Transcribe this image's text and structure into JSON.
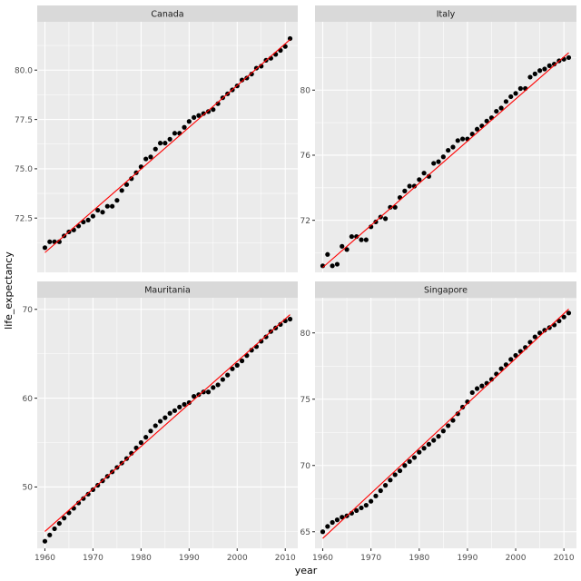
{
  "chart_data": {
    "type": "scatter",
    "layout": "facet-wrap 2x2, free y scales",
    "x_label": "year",
    "y_label": "life_expectancy",
    "x_ticks": [
      1960,
      1970,
      1980,
      1990,
      2000,
      2010
    ],
    "x_range": [
      1958.4,
      2012.6
    ],
    "smooth": {
      "method": "linear",
      "color": "#ff0000"
    },
    "point_color": "#000000",
    "panel_background": "#ebebeb",
    "strip_background": "#d9d9d9",
    "grid": true,
    "panels": [
      {
        "title": "Canada",
        "y_range": [
          69.75,
          82.45
        ],
        "y_ticks": [
          72.5,
          75.0,
          77.5,
          80.0
        ],
        "y_tick_labels": [
          "72.5",
          "75.0",
          "77.5",
          "80.0"
        ],
        "x": [
          1960,
          1961,
          1962,
          1963,
          1964,
          1965,
          1966,
          1967,
          1968,
          1969,
          1970,
          1971,
          1972,
          1973,
          1974,
          1975,
          1976,
          1977,
          1978,
          1979,
          1980,
          1981,
          1982,
          1983,
          1984,
          1985,
          1986,
          1987,
          1988,
          1989,
          1990,
          1991,
          1992,
          1993,
          1994,
          1995,
          1996,
          1997,
          1998,
          1999,
          2000,
          2001,
          2002,
          2003,
          2004,
          2005,
          2006,
          2007,
          2008,
          2009,
          2010,
          2011
        ],
        "y": [
          71.0,
          71.3,
          71.3,
          71.3,
          71.6,
          71.8,
          71.9,
          72.1,
          72.3,
          72.4,
          72.6,
          72.9,
          72.8,
          73.1,
          73.1,
          73.4,
          73.9,
          74.2,
          74.5,
          74.8,
          75.1,
          75.5,
          75.6,
          76.0,
          76.3,
          76.3,
          76.5,
          76.8,
          76.8,
          77.1,
          77.4,
          77.6,
          77.7,
          77.8,
          77.9,
          78.0,
          78.3,
          78.6,
          78.8,
          79.0,
          79.2,
          79.5,
          79.6,
          79.8,
          80.1,
          80.2,
          80.5,
          80.6,
          80.8,
          81.0,
          81.2,
          81.6
        ],
        "fit": [
          [
            1960,
            70.75
          ],
          [
            2011,
            81.55
          ]
        ]
      },
      {
        "title": "Italy",
        "y_range": [
          68.8,
          84.2
        ],
        "y_ticks": [
          72,
          76,
          80
        ],
        "y_tick_labels": [
          "72",
          "76",
          "80"
        ],
        "x": [
          1960,
          1961,
          1962,
          1963,
          1964,
          1965,
          1966,
          1967,
          1968,
          1969,
          1970,
          1971,
          1972,
          1973,
          1974,
          1975,
          1976,
          1977,
          1978,
          1979,
          1980,
          1981,
          1982,
          1983,
          1984,
          1985,
          1986,
          1987,
          1988,
          1989,
          1990,
          1991,
          1992,
          1993,
          1994,
          1995,
          1996,
          1997,
          1998,
          1999,
          2000,
          2001,
          2002,
          2003,
          2004,
          2005,
          2006,
          2007,
          2008,
          2009,
          2010,
          2011
        ],
        "y": [
          69.2,
          69.9,
          69.2,
          69.3,
          70.4,
          70.2,
          71.0,
          71.0,
          70.8,
          70.8,
          71.6,
          71.9,
          72.2,
          72.1,
          72.8,
          72.8,
          73.4,
          73.8,
          74.1,
          74.1,
          74.5,
          74.9,
          74.7,
          75.5,
          75.6,
          75.9,
          76.3,
          76.5,
          76.9,
          77.0,
          77.0,
          77.3,
          77.6,
          77.8,
          78.1,
          78.3,
          78.7,
          78.9,
          79.3,
          79.6,
          79.8,
          80.1,
          80.1,
          80.8,
          81.0,
          81.2,
          81.3,
          81.5,
          81.6,
          81.8,
          81.9,
          82.0
        ],
        "fit": [
          [
            1960,
            69.1
          ],
          [
            2011,
            82.3
          ]
        ]
      },
      {
        "title": "Mauritania",
        "y_range": [
          43.1,
          71.3
        ],
        "y_ticks": [
          50,
          60,
          70
        ],
        "y_tick_labels": [
          "50",
          "60",
          "70"
        ],
        "x": [
          1960,
          1961,
          1962,
          1963,
          1964,
          1965,
          1966,
          1967,
          1968,
          1969,
          1970,
          1971,
          1972,
          1973,
          1974,
          1975,
          1976,
          1977,
          1978,
          1979,
          1980,
          1981,
          1982,
          1983,
          1984,
          1985,
          1986,
          1987,
          1988,
          1989,
          1990,
          1991,
          1992,
          1993,
          1994,
          1995,
          1996,
          1997,
          1998,
          1999,
          2000,
          2001,
          2002,
          2003,
          2004,
          2005,
          2006,
          2007,
          2008,
          2009,
          2010,
          2011
        ],
        "y": [
          43.9,
          44.6,
          45.3,
          45.9,
          46.5,
          47.1,
          47.6,
          48.2,
          48.7,
          49.2,
          49.7,
          50.2,
          50.7,
          51.2,
          51.7,
          52.2,
          52.7,
          53.2,
          53.8,
          54.4,
          55.0,
          55.6,
          56.3,
          56.9,
          57.4,
          57.8,
          58.3,
          58.6,
          59.0,
          59.3,
          59.5,
          60.2,
          60.4,
          60.7,
          60.7,
          61.2,
          61.5,
          62.1,
          62.6,
          63.3,
          63.7,
          64.2,
          64.8,
          65.4,
          65.8,
          66.4,
          66.9,
          67.5,
          67.9,
          68.3,
          68.7,
          68.9
        ],
        "fit": [
          [
            1960,
            45.0
          ],
          [
            2011,
            69.4
          ]
        ]
      },
      {
        "title": "Singapore",
        "y_range": [
          63.75,
          82.65
        ],
        "y_ticks": [
          65,
          70,
          75,
          80
        ],
        "y_tick_labels": [
          "65",
          "70",
          "75",
          "80"
        ],
        "x": [
          1960,
          1961,
          1962,
          1963,
          1964,
          1965,
          1966,
          1967,
          1968,
          1969,
          1970,
          1971,
          1972,
          1973,
          1974,
          1975,
          1976,
          1977,
          1978,
          1979,
          1980,
          1981,
          1982,
          1983,
          1984,
          1985,
          1986,
          1987,
          1988,
          1989,
          1990,
          1991,
          1992,
          1993,
          1994,
          1995,
          1996,
          1997,
          1998,
          1999,
          2000,
          2001,
          2002,
          2003,
          2004,
          2005,
          2006,
          2007,
          2008,
          2009,
          2010,
          2011
        ],
        "y": [
          65.0,
          65.4,
          65.7,
          65.9,
          66.1,
          66.2,
          66.4,
          66.6,
          66.8,
          67.0,
          67.3,
          67.7,
          68.1,
          68.5,
          68.9,
          69.3,
          69.6,
          70.0,
          70.3,
          70.6,
          71.0,
          71.3,
          71.6,
          71.9,
          72.2,
          72.6,
          73.0,
          73.4,
          73.9,
          74.4,
          74.8,
          75.5,
          75.8,
          76.0,
          76.2,
          76.5,
          76.9,
          77.3,
          77.6,
          78.0,
          78.3,
          78.6,
          78.9,
          79.3,
          79.7,
          80.0,
          80.2,
          80.4,
          80.6,
          80.9,
          81.2,
          81.5
        ],
        "fit": [
          [
            1960,
            64.5
          ],
          [
            2011,
            81.8
          ]
        ]
      }
    ]
  }
}
